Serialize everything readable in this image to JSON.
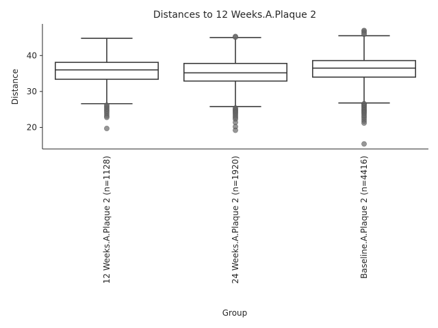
{
  "chart_data": {
    "type": "box",
    "title": "Distances to 12 Weeks.A.Plaque 2",
    "xlabel": "Group",
    "ylabel": "Distance",
    "ylim": [
      14,
      48.8
    ],
    "yticks": [
      20,
      30,
      40
    ],
    "categories": [
      "12 Weeks.A.Plaque 2 (n=1128)",
      "24 Weeks.A.Plaque 2 (n=1920)",
      "Baseline.A.Plaque 2 (n=4416)"
    ],
    "boxes": [
      {
        "whisker_low": 26.6,
        "q1": 33.4,
        "median": 36.0,
        "q3": 38.1,
        "whisker_high": 44.8,
        "fliers": [
          26.2,
          25.8,
          25.4,
          25.0,
          24.6,
          24.2,
          23.7,
          23.2,
          22.8,
          19.7
        ]
      },
      {
        "whisker_low": 25.8,
        "q1": 32.9,
        "median": 35.2,
        "q3": 37.8,
        "whisker_high": 45.0,
        "fliers": [
          45.3,
          45.1,
          25.4,
          25.1,
          24.8,
          24.5,
          24.2,
          23.9,
          23.5,
          23.1,
          22.7,
          22.3,
          21.4,
          20.2,
          19.2
        ]
      },
      {
        "whisker_low": 26.8,
        "q1": 34.0,
        "median": 36.5,
        "q3": 38.6,
        "whisker_high": 45.5,
        "fliers": [
          47.0,
          46.7,
          46.3,
          45.9,
          26.6,
          26.3,
          26.0,
          25.7,
          25.4,
          25.1,
          24.8,
          24.5,
          24.2,
          23.9,
          23.5,
          23.1,
          22.7,
          22.2,
          21.7,
          21.2,
          15.4
        ]
      }
    ],
    "grid": false,
    "colors": {
      "box_edge": "#3b3b3b",
      "box_fill": "#ffffff",
      "flier": "#6b6b6b",
      "text": "#262626"
    }
  }
}
